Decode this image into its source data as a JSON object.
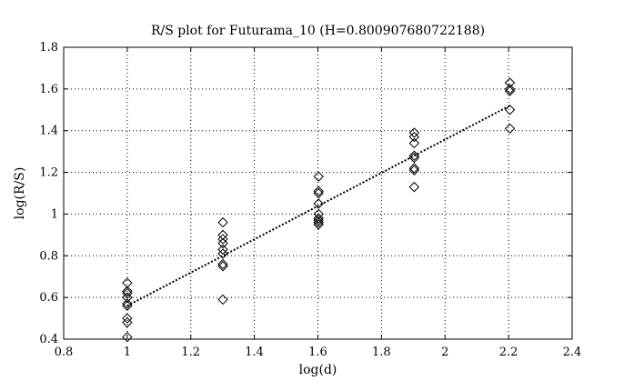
{
  "chart_data": {
    "type": "scatter",
    "title": "R/S plot for Futurama_10 (H=0.800907680722188)",
    "xlabel": "log(d)",
    "ylabel": "log(R/S)",
    "xlim": [
      0.8,
      2.4
    ],
    "ylim": [
      0.4,
      1.8
    ],
    "xticks": [
      0.8,
      1,
      1.2,
      1.4,
      1.6,
      1.8,
      2,
      2.2,
      2.4
    ],
    "xtick_labels": [
      "0.8",
      "1",
      "1.2",
      "1.4",
      "1.6",
      "1.8",
      "2",
      "2.2",
      "2.4"
    ],
    "yticks": [
      0.4,
      0.6,
      0.8,
      1,
      1.2,
      1.4,
      1.6,
      1.8
    ],
    "ytick_labels": [
      "0.4",
      "0.6",
      "0.8",
      "1",
      "1.2",
      "1.4",
      "1.6",
      "1.8"
    ],
    "grid": true,
    "marker": "diamond",
    "colors": {
      "foreground": "#000000",
      "background": "#ffffff"
    },
    "points": [
      {
        "x": 1.0,
        "y": 0.67
      },
      {
        "x": 1.0,
        "y": 0.63
      },
      {
        "x": 1.0,
        "y": 0.62
      },
      {
        "x": 1.0,
        "y": 0.6
      },
      {
        "x": 1.0,
        "y": 0.57
      },
      {
        "x": 1.0,
        "y": 0.56
      },
      {
        "x": 1.0,
        "y": 0.5
      },
      {
        "x": 1.0,
        "y": 0.48
      },
      {
        "x": 1.0,
        "y": 0.41
      },
      {
        "x": 1.301,
        "y": 0.96
      },
      {
        "x": 1.301,
        "y": 0.9
      },
      {
        "x": 1.301,
        "y": 0.88
      },
      {
        "x": 1.301,
        "y": 0.86
      },
      {
        "x": 1.301,
        "y": 0.83
      },
      {
        "x": 1.301,
        "y": 0.81
      },
      {
        "x": 1.301,
        "y": 0.76
      },
      {
        "x": 1.301,
        "y": 0.75
      },
      {
        "x": 1.301,
        "y": 0.59
      },
      {
        "x": 1.602,
        "y": 1.18
      },
      {
        "x": 1.602,
        "y": 1.11
      },
      {
        "x": 1.602,
        "y": 1.1
      },
      {
        "x": 1.602,
        "y": 1.05
      },
      {
        "x": 1.602,
        "y": 1.0
      },
      {
        "x": 1.602,
        "y": 0.98
      },
      {
        "x": 1.602,
        "y": 0.97
      },
      {
        "x": 1.602,
        "y": 0.96
      },
      {
        "x": 1.602,
        "y": 0.95
      },
      {
        "x": 1.903,
        "y": 1.39
      },
      {
        "x": 1.903,
        "y": 1.37
      },
      {
        "x": 1.903,
        "y": 1.34
      },
      {
        "x": 1.903,
        "y": 1.28
      },
      {
        "x": 1.903,
        "y": 1.27
      },
      {
        "x": 1.903,
        "y": 1.22
      },
      {
        "x": 1.903,
        "y": 1.21
      },
      {
        "x": 1.903,
        "y": 1.13
      },
      {
        "x": 2.204,
        "y": 1.63
      },
      {
        "x": 2.204,
        "y": 1.6
      },
      {
        "x": 2.204,
        "y": 1.59
      },
      {
        "x": 2.204,
        "y": 1.5
      },
      {
        "x": 2.204,
        "y": 1.41
      }
    ],
    "fit_line": {
      "style": "dotted",
      "start": {
        "x": 1.0,
        "y": 0.56
      },
      "end": {
        "x": 2.204,
        "y": 1.52
      }
    }
  }
}
